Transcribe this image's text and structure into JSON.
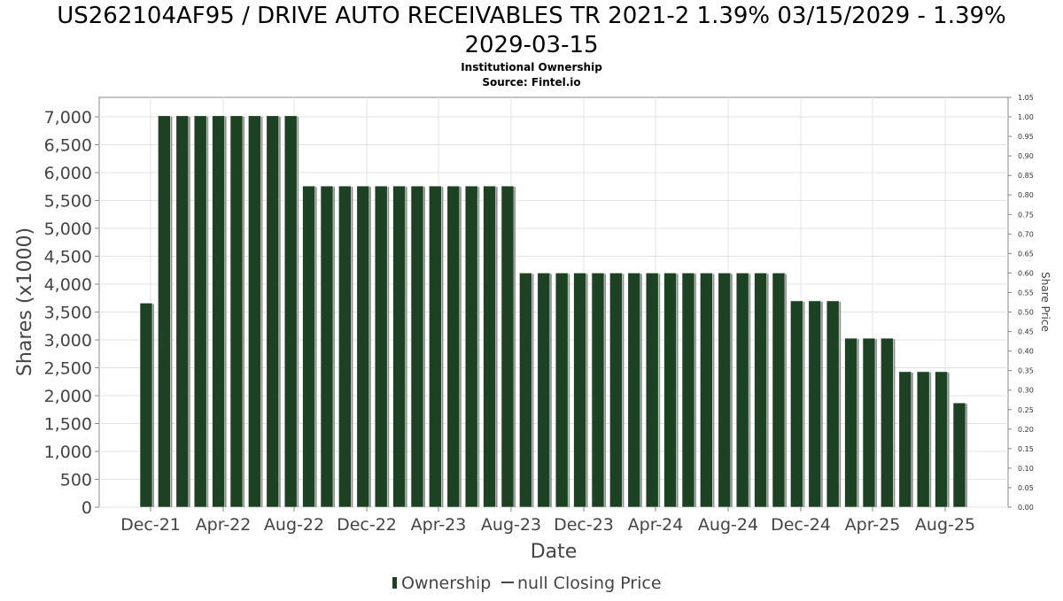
{
  "chart_data": {
    "type": "bar",
    "title_line1": "US262104AF95 / DRIVE AUTO RECEIVABLES TR 2021-2 1.39% 03/15/2029 - 1.39%",
    "title_line2": "2029-03-15",
    "subtitle": "Institutional Ownership",
    "source": "Source: Fintel.io",
    "xlabel": "Date",
    "ylabel": "Shares (x1000)",
    "y2label": "Share Price",
    "ylim": [
      0,
      7350
    ],
    "y2lim": [
      0,
      1.05
    ],
    "yticks": [
      "0",
      "500",
      "1,000",
      "1,500",
      "2,000",
      "2,500",
      "3,000",
      "3,500",
      "4,000",
      "4,500",
      "5,000",
      "5,500",
      "6,000",
      "6,500",
      "7,000"
    ],
    "ytick_values": [
      0,
      500,
      1000,
      1500,
      2000,
      2500,
      3000,
      3500,
      4000,
      4500,
      5000,
      5500,
      6000,
      6500,
      7000
    ],
    "y2ticks": [
      "0.00",
      "0.05",
      "0.10",
      "0.15",
      "0.20",
      "0.25",
      "0.30",
      "0.35",
      "0.40",
      "0.45",
      "0.50",
      "0.55",
      "0.60",
      "0.65",
      "0.70",
      "0.75",
      "0.80",
      "0.85",
      "0.90",
      "0.95",
      "1.00",
      "1.05"
    ],
    "y2tick_values": [
      0,
      0.05,
      0.1,
      0.15,
      0.2,
      0.25,
      0.3,
      0.35,
      0.4,
      0.45,
      0.5,
      0.55,
      0.6,
      0.65,
      0.7,
      0.75,
      0.8,
      0.85,
      0.9,
      0.95,
      1.0,
      1.05
    ],
    "xticks": [
      "Dec-21",
      "Apr-22",
      "Aug-22",
      "Dec-22",
      "Apr-23",
      "Aug-23",
      "Dec-23",
      "Apr-24",
      "Aug-24",
      "Dec-24",
      "Apr-25",
      "Aug-25"
    ],
    "series": [
      {
        "name": "Ownership",
        "color": "#1c4223",
        "values": [
          3660,
          7020,
          7020,
          7020,
          7020,
          7020,
          7020,
          7020,
          7020,
          5760,
          5760,
          5760,
          5760,
          5760,
          5760,
          5760,
          5760,
          5760,
          5760,
          5760,
          5760,
          4200,
          4200,
          4200,
          4200,
          4200,
          4200,
          4200,
          4200,
          4200,
          4200,
          4200,
          4200,
          4200,
          4200,
          4200,
          3700,
          3700,
          3700,
          3030,
          3030,
          3030,
          2430,
          2430,
          2430,
          1870
        ]
      }
    ],
    "legend": {
      "placement": "bottom",
      "items": [
        "Ownership",
        "null Closing Price"
      ]
    },
    "grid": true
  }
}
